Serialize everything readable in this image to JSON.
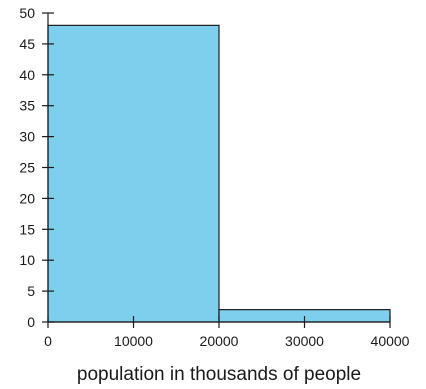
{
  "chart_data": {
    "type": "bar",
    "style": "histogram",
    "bins": [
      {
        "x0": 0,
        "x1": 20000,
        "value": 48
      },
      {
        "x0": 20000,
        "x1": 40000,
        "value": 2
      }
    ],
    "xlabel": "population in thousands of people",
    "ylabel": "",
    "xlim": [
      0,
      40000
    ],
    "ylim": [
      0,
      50
    ],
    "xticks": [
      "0",
      "10000",
      "20000",
      "30000",
      "40000"
    ],
    "yticks": [
      "0",
      "5",
      "10",
      "15",
      "20",
      "25",
      "30",
      "35",
      "40",
      "45",
      "50"
    ],
    "bar_color": "#7ecfee",
    "axis_color": "#1a1a1a",
    "grid": false
  }
}
